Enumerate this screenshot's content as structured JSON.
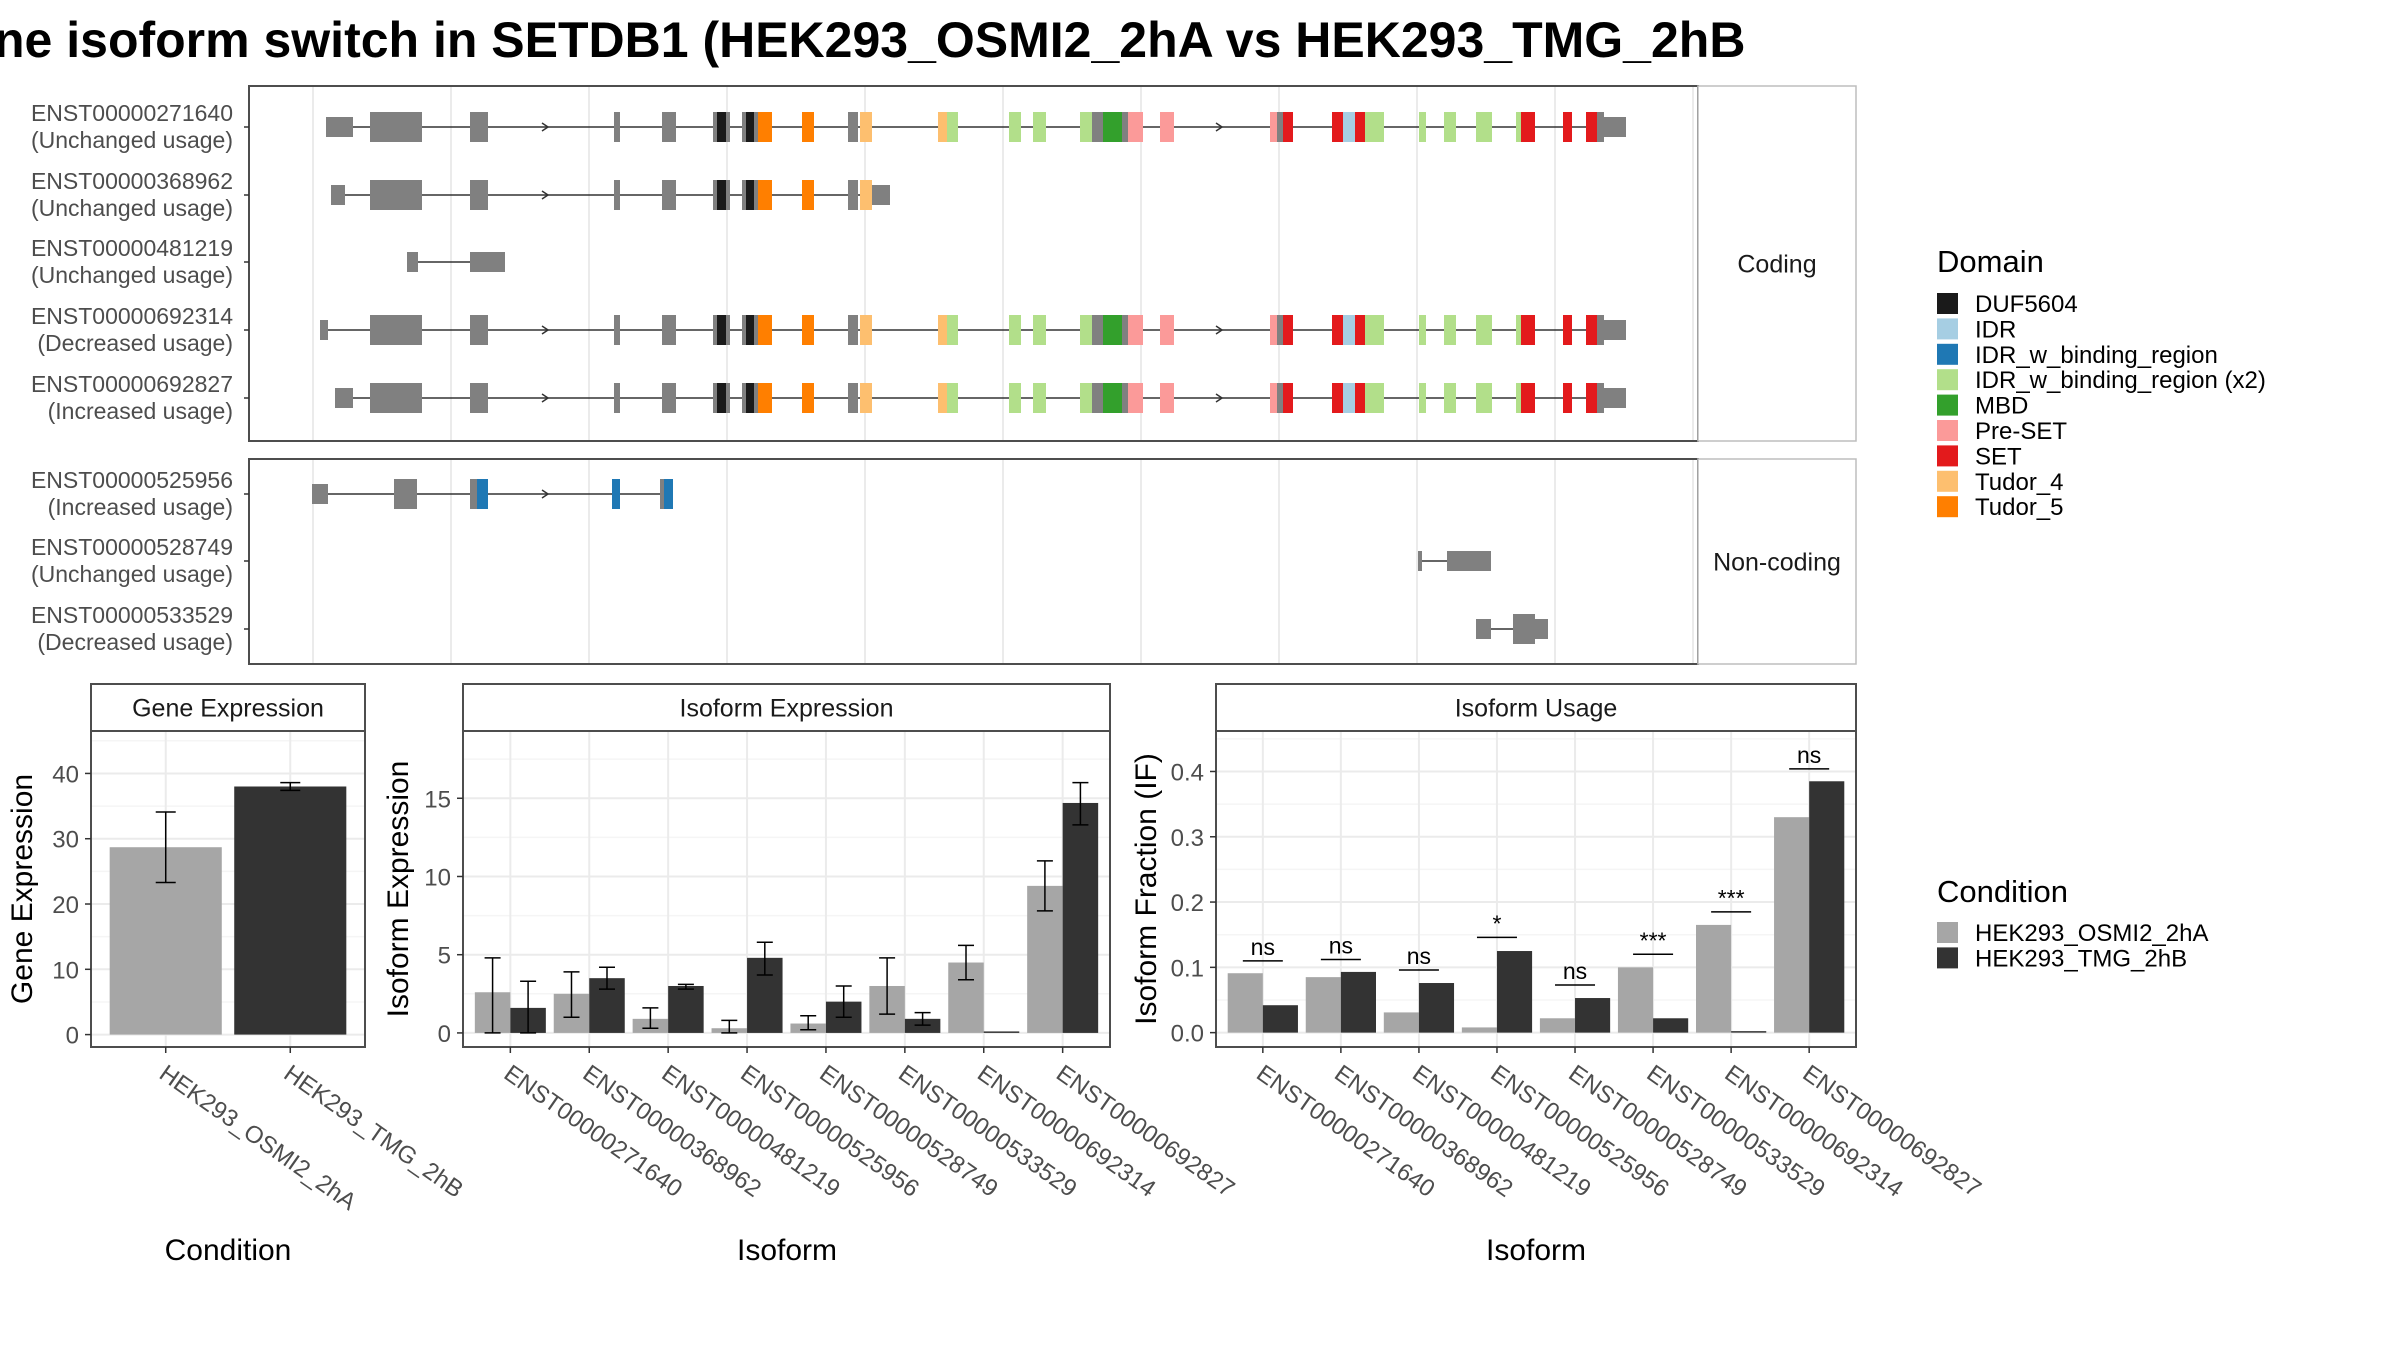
{
  "title": "ne isoform switch in SETDB1 (HEK293_OSMI2_2hA vs HEK293_TMG_2hB",
  "colors": {
    "panel_border": "#4d4d4d",
    "strip_fill": "#ffffff",
    "grid_major": "#ebebeb",
    "grid_minor": "#f5f5f5",
    "exon": "#808080",
    "intron": "#333333",
    "cond_a": "#a6a6a6",
    "cond_b": "#333333"
  },
  "domain_legend": {
    "title": "Domain",
    "items": [
      {
        "name": "DUF5604",
        "color": "#1a1a1a"
      },
      {
        "name": "IDR",
        "color": "#a6cee3"
      },
      {
        "name": "IDR_w_binding_region",
        "color": "#1f78b4"
      },
      {
        "name": "IDR_w_binding_region (x2)",
        "color": "#b2df8a"
      },
      {
        "name": "MBD",
        "color": "#33a02c"
      },
      {
        "name": "Pre-SET",
        "color": "#fb9a99"
      },
      {
        "name": "SET",
        "color": "#e31a1c"
      },
      {
        "name": "Tudor_4",
        "color": "#fdbf6f"
      },
      {
        "name": "Tudor_5",
        "color": "#ff7f00"
      }
    ]
  },
  "condition_legend": {
    "title": "Condition",
    "items": [
      {
        "name": "HEK293_OSMI2_2hA",
        "color": "#a6a6a6"
      },
      {
        "name": "HEK293_TMG_2hB",
        "color": "#333333"
      }
    ]
  },
  "structure": {
    "coding_label": "Coding",
    "noncoding_label": "Non-coding",
    "coding": [
      {
        "id": "ENST00000271640",
        "usage": "(Unchanged usage)"
      },
      {
        "id": "ENST00000368962",
        "usage": "(Unchanged usage)"
      },
      {
        "id": "ENST00000481219",
        "usage": "(Unchanged usage)"
      },
      {
        "id": "ENST00000692314",
        "usage": "(Decreased usage)"
      },
      {
        "id": "ENST00000692827",
        "usage": "(Increased usage)"
      }
    ],
    "noncoding": [
      {
        "id": "ENST00000525956",
        "usage": "(Increased usage)"
      },
      {
        "id": "ENST00000528749",
        "usage": "(Unchanged usage)"
      },
      {
        "id": "ENST00000533529",
        "usage": "(Decreased usage)"
      }
    ]
  },
  "chart_data": [
    {
      "type": "bar",
      "title": "Gene Expression",
      "xlabel": "Condition",
      "ylabel": "Gene Expression",
      "categories": [
        "HEK293_OSMI2_2hA",
        "HEK293_TMG_2hB"
      ],
      "values": [
        28.7,
        38.0
      ],
      "error_low": [
        23.3,
        37.4
      ],
      "error_high": [
        34.1,
        38.6
      ],
      "ylim": [
        -1.9,
        46.5
      ],
      "yticks": [
        0,
        10,
        20,
        30,
        40
      ]
    },
    {
      "type": "bar",
      "title": "Isoform Expression",
      "xlabel": "Isoform",
      "ylabel": "Isoform Expression",
      "categories": [
        "ENST00000271640",
        "ENST00000368962",
        "ENST00000481219",
        "ENST00000525956",
        "ENST00000528749",
        "ENST00000533529",
        "ENST00000692314",
        "ENST00000692827"
      ],
      "series": [
        {
          "name": "HEK293_OSMI2_2hA",
          "values": [
            2.6,
            2.5,
            0.9,
            0.3,
            0.6,
            3.0,
            4.5,
            9.4
          ],
          "error_low": [
            0.0,
            1.0,
            0.3,
            0.0,
            0.2,
            1.2,
            3.4,
            7.8
          ],
          "error_high": [
            4.8,
            3.9,
            1.6,
            0.8,
            1.1,
            4.8,
            5.6,
            11.0
          ]
        },
        {
          "name": "HEK293_TMG_2hB",
          "values": [
            1.6,
            3.5,
            3.0,
            4.8,
            2.0,
            0.9,
            0.0,
            14.7
          ],
          "error_low": [
            0.0,
            2.8,
            2.8,
            3.7,
            1.0,
            0.5,
            0.0,
            13.3
          ],
          "error_high": [
            3.3,
            4.2,
            3.1,
            5.8,
            3.0,
            1.3,
            0.0,
            16.0
          ]
        }
      ],
      "ylim": [
        -0.9,
        19.3
      ],
      "yticks": [
        0,
        5,
        10,
        15
      ]
    },
    {
      "type": "bar",
      "title": "Isoform Usage",
      "xlabel": "Isoform",
      "ylabel": "Isoform Fraction (IF)",
      "categories": [
        "ENST00000271640",
        "ENST00000368962",
        "ENST00000481219",
        "ENST00000525956",
        "ENST00000528749",
        "ENST00000533529",
        "ENST00000692314",
        "ENST00000692827"
      ],
      "series": [
        {
          "name": "HEK293_OSMI2_2hA",
          "values": [
            0.091,
            0.085,
            0.031,
            0.008,
            0.022,
            0.1,
            0.165,
            0.33
          ]
        },
        {
          "name": "HEK293_TMG_2hB",
          "values": [
            0.042,
            0.093,
            0.076,
            0.125,
            0.053,
            0.022,
            0.0,
            0.385
          ]
        }
      ],
      "significance": [
        "ns",
        "ns",
        "ns",
        "*",
        "ns",
        "***",
        "***",
        "ns"
      ],
      "significance_y": [
        0.11,
        0.112,
        0.096,
        0.146,
        0.073,
        0.12,
        0.185,
        0.404
      ],
      "ylim": [
        -0.022,
        0.462
      ],
      "yticks": [
        0.0,
        0.1,
        0.2,
        0.3,
        0.4
      ],
      "ytick_labels": [
        "0.0",
        "0.1",
        "0.2",
        "0.3",
        "0.4"
      ]
    }
  ]
}
